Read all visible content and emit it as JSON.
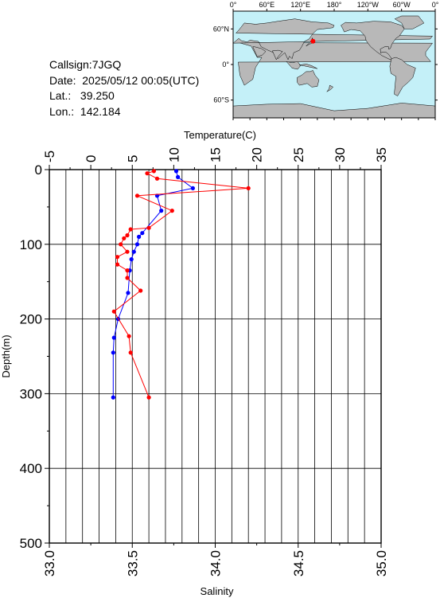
{
  "info": {
    "callsign": "Callsign:7JGQ",
    "date": "Date:  2025/05/12 00:05(UTC)",
    "lat": "Lat.:   39.250",
    "lon": "Lon.:  142.184"
  },
  "map": {
    "lon_labels": [
      "0°",
      "60°E",
      "120°E",
      "180°",
      "120°W",
      "60°W",
      "0°"
    ],
    "lat_labels": [
      "60°N",
      "0°",
      "60°S"
    ],
    "station": {
      "lat": 39.25,
      "lon": 142.184
    },
    "colors": {
      "ocean": "#c4f0f8",
      "land": "#b8b8b8",
      "marker": "#ff0000"
    }
  },
  "chart_data": {
    "type": "line",
    "top_axis": {
      "label": "Temperature(C)",
      "range": [
        -5,
        35
      ],
      "ticks": [
        "-5",
        "0",
        "5",
        "10",
        "15",
        "20",
        "25",
        "30",
        "35"
      ]
    },
    "bottom_axis": {
      "label": "Salinity",
      "range": [
        33.0,
        35.0
      ],
      "ticks": [
        "33.0",
        "33.5",
        "34.0",
        "34.5",
        "35.0"
      ]
    },
    "y_axis": {
      "label": "Depth(m)",
      "range": [
        0,
        500
      ],
      "inverted": true,
      "ticks": [
        "0",
        "100",
        "200",
        "300",
        "400",
        "500"
      ]
    },
    "grid": true,
    "series": [
      {
        "quantity": "temperature",
        "color": "#0000ff",
        "depth": [
          2,
          10,
          25,
          35,
          55,
          85,
          90,
          100,
          110,
          120,
          135,
          165,
          200,
          225,
          245,
          305
        ],
        "values": [
          10.3,
          10.5,
          12.3,
          8.0,
          8.5,
          6.2,
          5.8,
          5.6,
          5.2,
          4.9,
          4.7,
          4.5,
          3.3,
          2.8,
          2.7,
          2.7
        ]
      },
      {
        "quantity": "salinity",
        "color": "#ff0000",
        "depth": [
          2,
          5,
          12,
          25,
          35,
          55,
          78,
          80,
          88,
          92,
          100,
          110,
          117,
          127,
          135,
          145,
          162,
          190,
          223,
          245,
          305
        ],
        "values": [
          33.63,
          33.59,
          33.65,
          34.2,
          33.53,
          33.74,
          33.6,
          33.49,
          33.47,
          33.45,
          33.43,
          33.47,
          33.41,
          33.41,
          33.47,
          33.47,
          33.55,
          33.39,
          33.48,
          33.49,
          33.6
        ]
      }
    ]
  }
}
